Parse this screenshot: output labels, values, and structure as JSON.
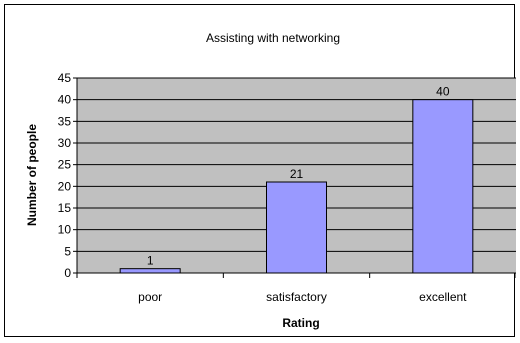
{
  "chart_data": {
    "type": "bar",
    "title": "Assisting with networking",
    "xlabel": "Rating",
    "ylabel": "Number of people",
    "categories": [
      "poor",
      "satisfactory",
      "excellent"
    ],
    "values": [
      1,
      21,
      40
    ],
    "data_labels": [
      "1",
      "21",
      "40"
    ],
    "ylim": [
      0,
      45
    ],
    "yticks": [
      0,
      5,
      10,
      15,
      20,
      25,
      30,
      35,
      40,
      45
    ],
    "ytick_labels": [
      "0",
      "5",
      "10",
      "15",
      "20",
      "25",
      "30",
      "35",
      "40",
      "45"
    ],
    "grid": true,
    "legend": "none",
    "colors": {
      "plot_background": "#c0c0c0",
      "bar_fill": "#9999ff",
      "bar_stroke": "#000000",
      "gridline": "#000000"
    }
  }
}
